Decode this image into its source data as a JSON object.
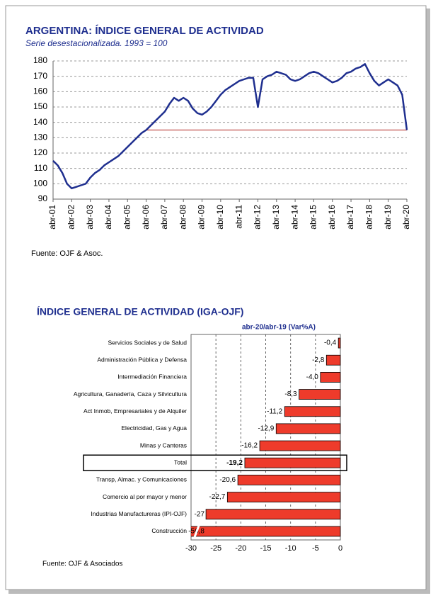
{
  "chart_data": [
    {
      "type": "line",
      "title": "ARGENTINA: ÍNDICE GENERAL DE ACTIVIDAD",
      "subtitle": "Serie desestacionalizada. 1993 = 100",
      "source": "Fuente: OJF & Asoc.",
      "categories": [
        "abr-01",
        null,
        null,
        null,
        "abr-02",
        null,
        null,
        null,
        "abr-03",
        null,
        null,
        null,
        "abr-04",
        null,
        null,
        null,
        "abr-05",
        null,
        null,
        null,
        "abr-06",
        null,
        null,
        null,
        "abr-07",
        null,
        null,
        null,
        "abr-08",
        null,
        null,
        null,
        "abr-09",
        null,
        null,
        null,
        "abr-10",
        null,
        null,
        null,
        "abr-11",
        null,
        null,
        null,
        "abr-12",
        null,
        null,
        null,
        "abr-13",
        null,
        null,
        null,
        "abr-14",
        null,
        null,
        null,
        "abr-15",
        null,
        null,
        null,
        "abr-16",
        null,
        null,
        null,
        "abr-17",
        null,
        null,
        null,
        "abr-18",
        null,
        null,
        null,
        "abr-19",
        null,
        null,
        null,
        "abr-20"
      ],
      "series": [
        {
          "color": "#1f2f8f",
          "values": [
            115,
            112,
            107,
            100,
            97,
            98,
            99,
            100,
            104,
            107,
            109,
            112,
            114,
            116,
            118,
            121,
            124,
            127,
            130,
            133,
            135,
            138,
            141,
            144,
            147,
            152,
            156,
            154,
            156,
            154,
            149,
            146,
            145,
            147,
            150,
            154,
            158,
            161,
            163,
            165,
            167,
            168,
            169,
            169,
            150,
            168,
            170,
            171,
            173,
            172,
            171,
            168,
            167,
            168,
            170,
            172,
            173,
            172,
            170,
            168,
            166,
            167,
            169,
            172,
            173,
            175,
            176,
            178,
            172,
            167,
            164,
            166,
            168,
            166,
            164,
            158,
            135
          ]
        },
        {
          "color": "#c0504d",
          "values": [
            null,
            null,
            null,
            null,
            null,
            null,
            null,
            null,
            null,
            null,
            null,
            null,
            null,
            null,
            null,
            null,
            null,
            null,
            null,
            null,
            135,
            135,
            135,
            135,
            135,
            135,
            135,
            135,
            135,
            135,
            135,
            135,
            135,
            135,
            135,
            135,
            135,
            135,
            135,
            135,
            135,
            135,
            135,
            135,
            135,
            135,
            135,
            135,
            135,
            135,
            135,
            135,
            135,
            135,
            135,
            135,
            135,
            135,
            135,
            135,
            135,
            135,
            135,
            135,
            135,
            135,
            135,
            135,
            135,
            135,
            135,
            135,
            135,
            135,
            135,
            135,
            135
          ]
        }
      ],
      "ylim": [
        90,
        180
      ],
      "yticks": [
        90,
        100,
        110,
        120,
        130,
        140,
        150,
        160,
        170,
        180
      ],
      "grid": true
    },
    {
      "type": "hbar",
      "title": "ÍNDICE GENERAL DE ACTIVIDAD (IGA-OJF)",
      "subtitle": "abr-20/abr-19 (Var%A)",
      "source": "Fuente: OJF & Asociados",
      "categories": [
        "Servicios Sociales y de Salud",
        "Administración Pública y Defensa",
        "Intermediación Financiera",
        "Agricultura, Ganadería, Caza y Silvicultura",
        "Act Inmob, Empresariales y de Alquiler",
        "Electricidad, Gas y Agua",
        "Minas y Canteras",
        "Total",
        "Transp, Almac. y Comunicaciones",
        "Comercio al por mayor y menor",
        "Industrias Manufactureras (IPI-OJF)",
        "Construcción"
      ],
      "values": [
        -0.4,
        -2.8,
        -4.0,
        -8.3,
        -11.2,
        -12.9,
        -16.2,
        -19.2,
        -20.6,
        -22.7,
        -27,
        -56.8
      ],
      "value_labels": [
        "-0,4",
        "-2,8",
        "-4,0",
        "-8,3",
        "-11,2",
        "-12,9",
        "-16,2",
        "-19,2",
        "-20,6",
        "-22,7",
        "-27",
        "-56,8"
      ],
      "color": "#ee3b2b",
      "xlim": [
        -30,
        0
      ],
      "xticks": [
        -30,
        -25,
        -20,
        -15,
        -10,
        -5,
        0
      ],
      "grid": true
    }
  ]
}
